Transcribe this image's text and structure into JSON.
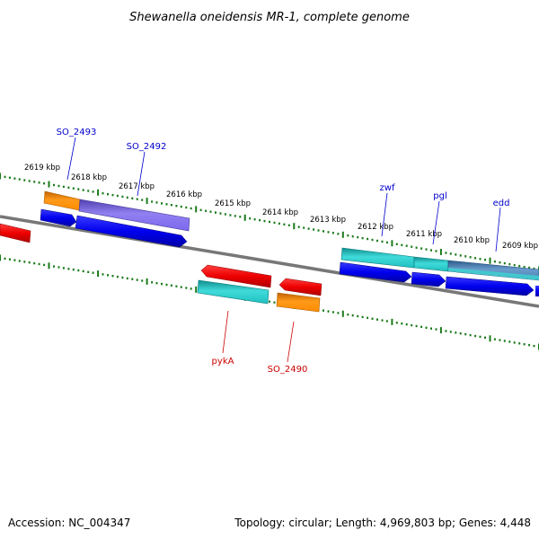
{
  "title": "Shewanella oneidensis MR-1, complete genome",
  "footer": {
    "accession": "Accession: NC_004347",
    "summary": "Topology: circular; Length: 4,969,803 bp; Genes: 4,448"
  },
  "scale": {
    "tick_labels": [
      "2619 kbp",
      "2618 kbp",
      "2617 kbp",
      "2616 kbp",
      "2615 kbp",
      "2614 kbp",
      "2613 kbp",
      "2612 kbp",
      "2611 kbp",
      "2610 kbp",
      "2609 kbp"
    ]
  },
  "genes": {
    "forward_labels": [
      "SO_2493",
      "SO_2492",
      "zwf",
      "pgl",
      "edd"
    ],
    "reverse_labels": [
      "pykA",
      "SO_2490"
    ]
  },
  "colors": {
    "backbone": "#777777",
    "tick": "#1a7a1a",
    "forward_cds": "#0000ee",
    "reverse_cds": "#ee0000",
    "gene_orange": "#ff8c00",
    "gene_purple": "#7b68ee",
    "gene_cyan": "#20c0c0",
    "gene_steel": "#4682b4",
    "forward_label": "#0000cc",
    "reverse_label": "#cc0000"
  }
}
